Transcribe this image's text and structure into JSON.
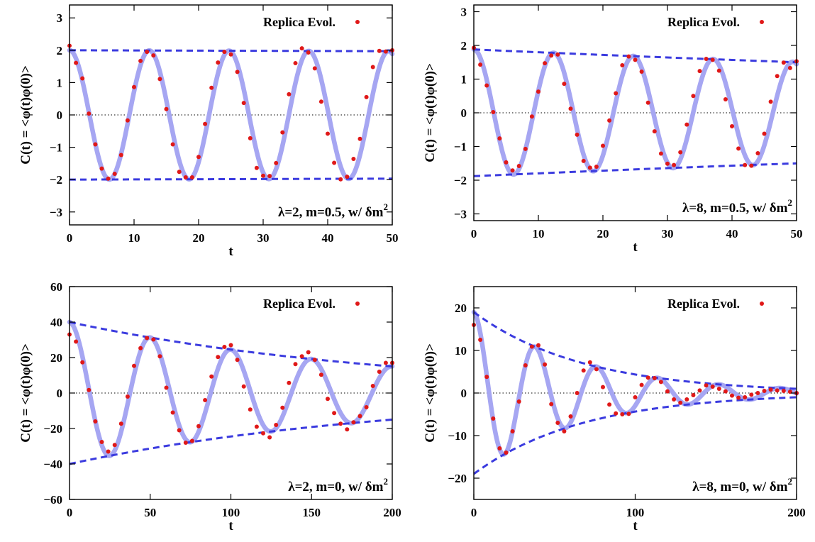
{
  "colors": {
    "fit_line": "#a6a6f2",
    "envelope": "#3b3bdf",
    "points": "#e01818",
    "zero_line": "#000000",
    "axes": "#000000"
  },
  "chart_data": [
    {
      "type": "line",
      "xlabel": "t",
      "ylabel": "C(t) = <φ(t)φ(0)>",
      "xlim": [
        0,
        50
      ],
      "ylim": [
        -3.4,
        3.4
      ],
      "xticks": [
        0,
        10,
        20,
        30,
        40,
        50
      ],
      "yticks": [
        -3,
        -2,
        -1,
        0,
        1,
        2,
        3
      ],
      "xtick_labels": [
        "0",
        "10",
        "20",
        "30",
        "40",
        "50"
      ],
      "ytick_labels": [
        "−3",
        "−2",
        "−1",
        "0",
        "1",
        "2",
        "3"
      ],
      "legend": {
        "label": "Replica Evol.",
        "position": "top-right"
      },
      "annotation": {
        "text": "λ=2, m=0.5, w/ δm",
        "sup": "2",
        "position": "bottom-right"
      },
      "zero_line": true,
      "fit": {
        "amplitude": 2.0,
        "decay": 0.0003,
        "omega": 0.5085,
        "x_max": 50
      },
      "series": [
        {
          "kind": "points",
          "name": "Replica Evol.",
          "x": [
            0,
            1,
            2,
            3,
            4,
            5,
            6,
            7,
            8,
            9,
            10,
            11,
            12,
            13,
            14,
            15,
            16,
            17,
            18,
            19,
            20,
            21,
            22,
            23,
            24,
            25,
            26,
            27,
            28,
            29,
            30,
            31,
            32,
            33,
            34,
            35,
            36,
            37,
            38,
            39,
            40,
            41,
            42,
            43,
            44,
            45,
            46,
            47,
            48,
            49,
            50
          ],
          "y": [
            2.14,
            1.61,
            1.13,
            0.04,
            -0.91,
            -1.66,
            -1.97,
            -1.82,
            -1.24,
            -0.17,
            0.86,
            1.67,
            1.95,
            1.84,
            1.11,
            0.18,
            -0.91,
            -1.76,
            -1.93,
            -1.93,
            -1.3,
            -0.28,
            0.84,
            1.62,
            1.95,
            1.87,
            1.33,
            0.37,
            -0.72,
            -1.64,
            -1.88,
            -1.89,
            -1.49,
            -0.54,
            0.64,
            1.6,
            2.06,
            1.93,
            1.44,
            0.41,
            -0.58,
            -1.48,
            -1.99,
            -1.91,
            -1.36,
            -0.74,
            0.55,
            1.48,
            1.98,
            1.96,
            2.0
          ]
        },
        {
          "kind": "envelope",
          "x": [
            0,
            50
          ],
          "y": [
            2.0,
            1.97
          ]
        },
        {
          "kind": "envelope",
          "x": [
            0,
            50
          ],
          "y": [
            -2.0,
            -1.97
          ]
        }
      ]
    },
    {
      "type": "line",
      "xlabel": "t",
      "ylabel": "C(t) = <φ(t)φ(0)>",
      "xlim": [
        0,
        50
      ],
      "ylim": [
        -3.2,
        3.2
      ],
      "xticks": [
        0,
        10,
        20,
        30,
        40,
        50
      ],
      "yticks": [
        -3,
        -2,
        -1,
        0,
        1,
        2,
        3
      ],
      "xtick_labels": [
        "0",
        "10",
        "20",
        "30",
        "40",
        "50"
      ],
      "ytick_labels": [
        "−3",
        "−2",
        "−1",
        "0",
        "1",
        "2",
        "3"
      ],
      "legend": {
        "label": "Replica Evol.",
        "position": "top-right"
      },
      "annotation": {
        "text": "λ=8, m=0.5, w/ δm",
        "sup": "2",
        "position": "bottom-right"
      },
      "zero_line": true,
      "fit": {
        "amplitude": 1.88,
        "decay": 0.0044,
        "omega": 0.5085,
        "x_max": 50
      },
      "series": [
        {
          "kind": "points",
          "name": "Replica Evol.",
          "x": [
            0,
            1,
            2,
            3,
            4,
            5,
            6,
            7,
            8,
            9,
            10,
            11,
            12,
            13,
            14,
            15,
            16,
            17,
            18,
            19,
            20,
            21,
            22,
            23,
            24,
            25,
            26,
            27,
            28,
            29,
            30,
            31,
            32,
            33,
            34,
            35,
            36,
            37,
            38,
            39,
            40,
            41,
            42,
            43,
            44,
            45,
            46,
            47,
            48,
            49,
            50
          ],
          "y": [
            1.93,
            1.43,
            0.81,
            0.02,
            -0.76,
            -1.47,
            -1.71,
            -1.58,
            -1.07,
            -0.11,
            0.63,
            1.47,
            1.7,
            1.73,
            0.86,
            0.12,
            -0.65,
            -1.43,
            -1.63,
            -1.6,
            -0.98,
            -0.23,
            0.58,
            1.41,
            1.67,
            1.57,
            1.22,
            0.3,
            -0.55,
            -1.21,
            -1.51,
            -1.55,
            -1.17,
            -0.35,
            0.5,
            1.24,
            1.6,
            1.57,
            1.25,
            0.4,
            -0.4,
            -1.06,
            -1.55,
            -1.57,
            -1.2,
            -0.62,
            0.33,
            1.09,
            1.49,
            1.33,
            1.53
          ]
        },
        {
          "kind": "envelope",
          "x": [
            0,
            50
          ],
          "y": [
            1.88,
            1.5
          ]
        },
        {
          "kind": "envelope",
          "x": [
            0,
            50
          ],
          "y": [
            -1.88,
            -1.5
          ]
        }
      ]
    },
    {
      "type": "line",
      "xlabel": "t",
      "ylabel": "C(t) = <φ(t)φ(0)>",
      "xlim": [
        0,
        200
      ],
      "ylim": [
        -60,
        60
      ],
      "xticks": [
        0,
        50,
        100,
        150,
        200
      ],
      "yticks": [
        -60,
        -40,
        -20,
        0,
        20,
        40,
        60
      ],
      "xtick_labels": [
        "0",
        "50",
        "100",
        "150",
        "200"
      ],
      "ytick_labels": [
        "−60",
        "−40",
        "−20",
        "0",
        "20",
        "40",
        "60"
      ],
      "legend": {
        "label": "Replica Evol.",
        "position": "top-right"
      },
      "annotation": {
        "text": "λ=2, m=0, w/ δm",
        "sup": "2",
        "position": "bottom-right"
      },
      "zero_line": true,
      "fit": {
        "amplitude": 40.0,
        "decay": 0.0049,
        "omega": 0.1257,
        "x_max": 200
      },
      "series": [
        {
          "kind": "points",
          "name": "Replica Evol.",
          "x": [
            0,
            4,
            8,
            12,
            16,
            20,
            24,
            28,
            32,
            36,
            40,
            44,
            48,
            52,
            56,
            60,
            64,
            68,
            72,
            76,
            80,
            84,
            88,
            92,
            96,
            100,
            104,
            108,
            112,
            116,
            120,
            124,
            128,
            132,
            136,
            140,
            144,
            148,
            152,
            156,
            160,
            164,
            168,
            172,
            176,
            180,
            184,
            188,
            192,
            196,
            200
          ],
          "y": [
            33.0,
            29.0,
            17.3,
            1.7,
            -16.0,
            -27.6,
            -33.0,
            -29.3,
            -17.3,
            -2.0,
            15.3,
            25.3,
            31.0,
            30.2,
            20.7,
            3.0,
            -11.0,
            -21.0,
            -28.0,
            -27.0,
            -18.7,
            -4.0,
            9.3,
            20.3,
            26.0,
            27.0,
            18.7,
            3.7,
            -9.3,
            -19.0,
            -22.7,
            -25.0,
            -18.0,
            -8.3,
            5.7,
            16.3,
            20.7,
            23.0,
            18.7,
            10.3,
            -3.3,
            -11.3,
            -17.3,
            -20.5,
            -16.5,
            -13.0,
            -8.0,
            4.0,
            12.0,
            17.0,
            17.0
          ]
        },
        {
          "kind": "envelope",
          "x": [
            0,
            200
          ],
          "y": [
            40.0,
            15.0
          ]
        },
        {
          "kind": "envelope",
          "x": [
            0,
            200
          ],
          "y": [
            -40.0,
            -15.0
          ]
        }
      ]
    },
    {
      "type": "line",
      "xlabel": "t",
      "ylabel": "C(t) = <φ(t)φ(0)>",
      "xlim": [
        0,
        200
      ],
      "ylim": [
        -25,
        25
      ],
      "xticks": [
        0,
        100,
        200
      ],
      "yticks": [
        -20,
        -10,
        0,
        10,
        20
      ],
      "xtick_labels": [
        "0",
        "100",
        "200"
      ],
      "ytick_labels": [
        "−20",
        "−10",
        "0",
        "10",
        "20"
      ],
      "legend": {
        "label": "Replica Evol.",
        "position": "top-right"
      },
      "annotation": {
        "text": "λ=8, m=0, w/ δm",
        "sup": "2",
        "position": "bottom-right"
      },
      "zero_line": true,
      "fit": {
        "amplitude": 19.0,
        "decay": 0.0147,
        "omega": 0.1653,
        "x_max": 200
      },
      "series": [
        {
          "kind": "points",
          "name": "Replica Evol.",
          "x": [
            0,
            4,
            8,
            12,
            16,
            20,
            24,
            28,
            32,
            36,
            40,
            44,
            48,
            52,
            56,
            60,
            64,
            68,
            72,
            76,
            80,
            84,
            88,
            92,
            96,
            100,
            104,
            108,
            112,
            116,
            120,
            124,
            128,
            132,
            136,
            140,
            144,
            148,
            152,
            156,
            160,
            164,
            168,
            172,
            176,
            180,
            184,
            188,
            192,
            196,
            200
          ],
          "y": [
            16.0,
            12.5,
            3.8,
            -6.0,
            -13.0,
            -14.0,
            -9.0,
            -2.0,
            6.5,
            10.9,
            11.2,
            6.7,
            -2.6,
            -7.0,
            -9.0,
            -5.5,
            0.0,
            5.3,
            7.2,
            5.6,
            1.4,
            -2.7,
            -4.8,
            -5.0,
            -4.9,
            -1.0,
            1.9,
            3.6,
            3.5,
            2.6,
            0.4,
            -1.5,
            -2.3,
            -1.5,
            -0.5,
            0.6,
            1.8,
            1.5,
            1.0,
            0.4,
            -0.6,
            -1.1,
            -1.0,
            -0.4,
            0.0,
            0.5,
            0.8,
            0.6,
            0.5,
            0.3,
            0.0
          ]
        },
        {
          "kind": "envelope",
          "x": [
            0,
            200
          ],
          "y": [
            19.0,
            1.0
          ]
        },
        {
          "kind": "envelope",
          "x": [
            0,
            200
          ],
          "y": [
            -19.0,
            -1.0
          ]
        }
      ]
    }
  ]
}
